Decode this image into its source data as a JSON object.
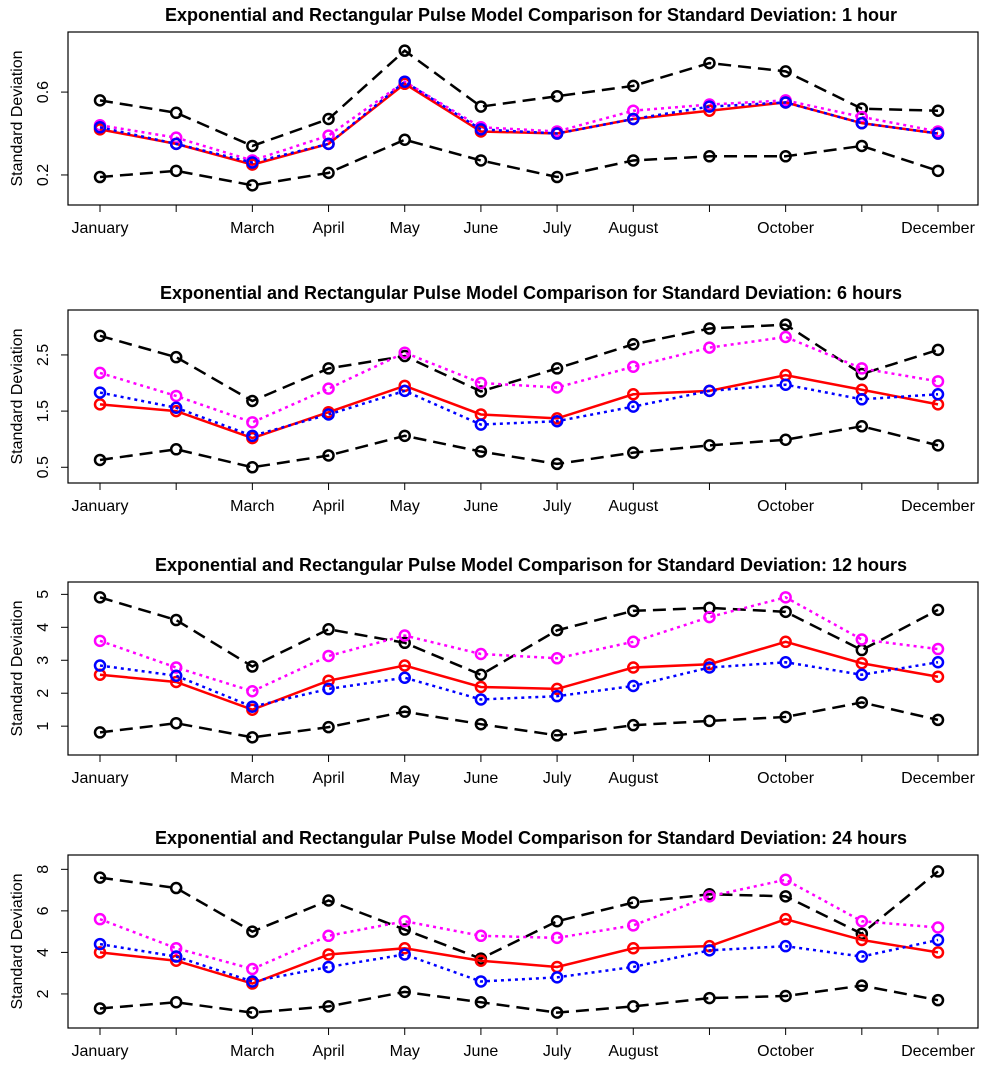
{
  "chart_data": [
    {
      "type": "line",
      "title": "Exponential and Rectangular Pulse Model Comparison for Standard Deviation: 1 hour",
      "y_label": "Standard Deviation",
      "categories": [
        "January",
        null,
        "March",
        "April",
        "May",
        "June",
        "July",
        "August",
        null,
        "October",
        null,
        "December"
      ],
      "ylim": [
        0.055,
        0.89
      ],
      "yticks": [
        0.2,
        0.6
      ],
      "series": [
        {
          "color": "#000000",
          "line_style": "dashed",
          "values": [
            0.56,
            0.5,
            0.34,
            0.47,
            0.8,
            0.53,
            0.58,
            0.63,
            0.74,
            0.7,
            0.52,
            0.51
          ]
        },
        {
          "color": "#000000",
          "line_style": "dashed",
          "values": [
            0.19,
            0.22,
            0.15,
            0.21,
            0.37,
            0.27,
            0.19,
            0.27,
            0.29,
            0.29,
            0.34,
            0.22
          ]
        },
        {
          "color": "#ff00ff",
          "line_style": "dotted",
          "values": [
            0.44,
            0.38,
            0.27,
            0.39,
            0.65,
            0.43,
            0.41,
            0.51,
            0.54,
            0.56,
            0.48,
            0.41
          ]
        },
        {
          "color": "#ff0000",
          "line_style": "solid",
          "values": [
            0.42,
            0.35,
            0.25,
            0.35,
            0.64,
            0.41,
            0.4,
            0.47,
            0.51,
            0.55,
            0.45,
            0.4
          ]
        },
        {
          "color": "#0000ff",
          "line_style": "dotted",
          "values": [
            0.43,
            0.35,
            0.26,
            0.35,
            0.65,
            0.42,
            0.4,
            0.47,
            0.53,
            0.55,
            0.45,
            0.4
          ]
        }
      ]
    },
    {
      "type": "line",
      "title": "Exponential and Rectangular Pulse Model Comparison for Standard Deviation: 6 hours",
      "y_label": "Standard Deviation",
      "categories": [
        "January",
        null,
        "March",
        "April",
        "May",
        "June",
        "July",
        "August",
        null,
        "October",
        null,
        "December"
      ],
      "ylim": [
        0.22,
        3.3
      ],
      "yticks": [
        0.5,
        1.5,
        2.5
      ],
      "series": [
        {
          "color": "#000000",
          "line_style": "dashed",
          "values": [
            2.84,
            2.46,
            1.68,
            2.26,
            2.48,
            1.85,
            2.26,
            2.69,
            2.97,
            3.04,
            2.16,
            2.59
          ]
        },
        {
          "color": "#000000",
          "line_style": "dashed",
          "values": [
            0.63,
            0.82,
            0.5,
            0.71,
            1.06,
            0.78,
            0.56,
            0.76,
            0.89,
            0.99,
            1.23,
            0.89
          ]
        },
        {
          "color": "#ff00ff",
          "line_style": "dotted",
          "values": [
            2.18,
            1.77,
            1.3,
            1.9,
            2.54,
            2.0,
            1.92,
            2.29,
            2.63,
            2.82,
            2.26,
            2.03
          ]
        },
        {
          "color": "#ff0000",
          "line_style": "solid",
          "values": [
            1.62,
            1.5,
            1.02,
            1.48,
            1.95,
            1.44,
            1.37,
            1.8,
            1.86,
            2.14,
            1.88,
            1.62
          ]
        },
        {
          "color": "#0000ff",
          "line_style": "dotted",
          "values": [
            1.83,
            1.56,
            1.06,
            1.44,
            1.86,
            1.26,
            1.32,
            1.58,
            1.86,
            1.97,
            1.71,
            1.8
          ]
        }
      ]
    },
    {
      "type": "line",
      "title": "Exponential and Rectangular Pulse Model Comparison for Standard Deviation: 12 hours",
      "y_label": "Standard Deviation",
      "categories": [
        "January",
        null,
        "March",
        "April",
        "May",
        "June",
        "July",
        "August",
        null,
        "October",
        null,
        "December"
      ],
      "ylim": [
        0.125,
        5.375
      ],
      "yticks": [
        1,
        2,
        3,
        4,
        5
      ],
      "series": [
        {
          "color": "#000000",
          "line_style": "dashed",
          "values": [
            4.91,
            4.22,
            2.81,
            3.94,
            3.53,
            2.56,
            3.91,
            4.5,
            4.59,
            4.47,
            3.31,
            4.53
          ]
        },
        {
          "color": "#000000",
          "line_style": "dashed",
          "values": [
            0.81,
            1.09,
            0.66,
            0.97,
            1.44,
            1.06,
            0.72,
            1.03,
            1.16,
            1.28,
            1.72,
            1.19
          ]
        },
        {
          "color": "#ff00ff",
          "line_style": "dotted",
          "values": [
            3.59,
            2.78,
            2.06,
            3.13,
            3.75,
            3.19,
            3.06,
            3.56,
            4.31,
            4.91,
            3.63,
            3.34
          ]
        },
        {
          "color": "#ff0000",
          "line_style": "solid",
          "values": [
            2.56,
            2.34,
            1.5,
            2.38,
            2.84,
            2.19,
            2.13,
            2.78,
            2.88,
            3.56,
            2.91,
            2.5
          ]
        },
        {
          "color": "#0000ff",
          "line_style": "dotted",
          "values": [
            2.84,
            2.53,
            1.59,
            2.13,
            2.47,
            1.81,
            1.91,
            2.22,
            2.78,
            2.94,
            2.56,
            2.94
          ]
        }
      ]
    },
    {
      "type": "line",
      "title": "Exponential and Rectangular Pulse Model Comparison for Standard Deviation: 24 hours",
      "y_label": "Standard Deviation",
      "categories": [
        "January",
        null,
        "March",
        "April",
        "May",
        "June",
        "July",
        "August",
        null,
        "October",
        null,
        "December"
      ],
      "ylim": [
        0.36,
        8.69
      ],
      "yticks": [
        2,
        4,
        6,
        8
      ],
      "series": [
        {
          "color": "#000000",
          "line_style": "dashed",
          "values": [
            7.6,
            7.1,
            5.0,
            6.5,
            5.1,
            3.7,
            5.5,
            6.4,
            6.8,
            6.7,
            4.9,
            7.9
          ]
        },
        {
          "color": "#000000",
          "line_style": "dashed",
          "values": [
            1.3,
            1.6,
            1.1,
            1.4,
            2.1,
            1.6,
            1.1,
            1.4,
            1.8,
            1.9,
            2.4,
            1.7
          ]
        },
        {
          "color": "#ff00ff",
          "line_style": "dotted",
          "values": [
            5.6,
            4.2,
            3.2,
            4.8,
            5.5,
            4.8,
            4.7,
            5.3,
            6.7,
            7.5,
            5.5,
            5.2
          ]
        },
        {
          "color": "#ff0000",
          "line_style": "solid",
          "values": [
            4.0,
            3.6,
            2.5,
            3.9,
            4.2,
            3.6,
            3.3,
            4.2,
            4.3,
            5.6,
            4.6,
            4.0
          ]
        },
        {
          "color": "#0000ff",
          "line_style": "dotted",
          "values": [
            4.4,
            3.8,
            2.6,
            3.3,
            3.9,
            2.6,
            2.8,
            3.3,
            4.1,
            4.3,
            3.8,
            4.6
          ]
        }
      ]
    }
  ]
}
